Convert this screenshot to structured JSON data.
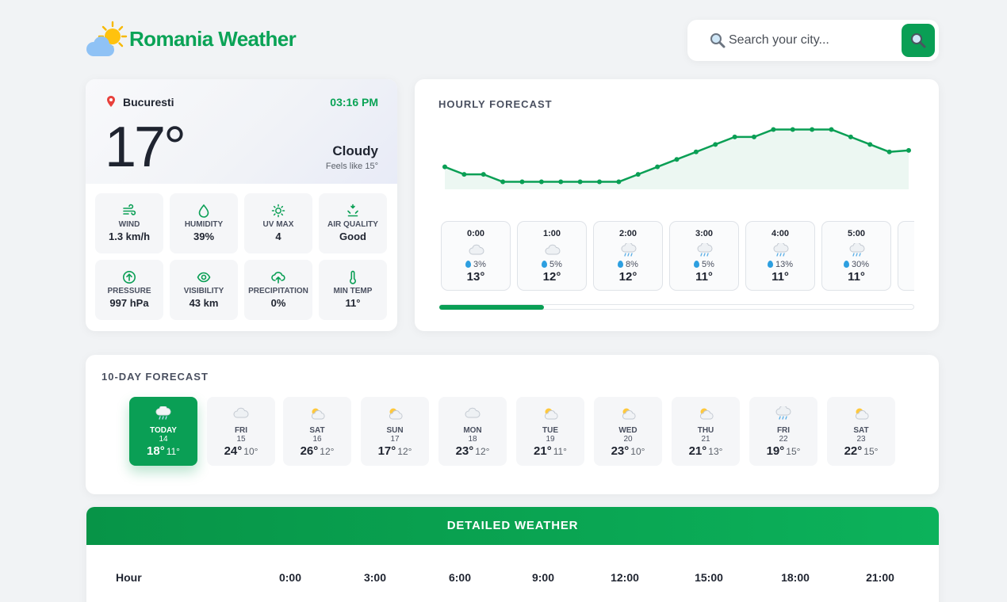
{
  "app": {
    "title": "Romania Weather"
  },
  "search": {
    "placeholder": "Search your city..."
  },
  "current": {
    "city": "Bucuresti",
    "time": "03:16 PM",
    "temperature": "17°",
    "condition": "Cloudy",
    "feels_like": "Feels like 15°",
    "stats": [
      {
        "icon": "wind-icon",
        "label": "WIND",
        "value": "1.3 km/h"
      },
      {
        "icon": "humidity-icon",
        "label": "HUMIDITY",
        "value": "39%"
      },
      {
        "icon": "sun-icon",
        "label": "UV MAX",
        "value": "4"
      },
      {
        "icon": "air-quality-icon",
        "label": "AIR QUALITY",
        "value": "Good"
      },
      {
        "icon": "pressure-icon",
        "label": "PRESSURE",
        "value": "997 hPa"
      },
      {
        "icon": "visibility-icon",
        "label": "VISIBILITY",
        "value": "43 km"
      },
      {
        "icon": "precipitation-icon",
        "label": "PRECIPITATION",
        "value": "0%"
      },
      {
        "icon": "thermometer-icon",
        "label": "MIN TEMP",
        "value": "11°"
      }
    ]
  },
  "hourly": {
    "title": "HOURLY FORECAST",
    "items": [
      {
        "time": "0:00",
        "icon": "cloud-icon",
        "precip": "3%",
        "temp": "13°"
      },
      {
        "time": "1:00",
        "icon": "cloud-icon",
        "precip": "5%",
        "temp": "12°"
      },
      {
        "time": "2:00",
        "icon": "rain-cloud-icon",
        "precip": "8%",
        "temp": "12°"
      },
      {
        "time": "3:00",
        "icon": "rain-cloud-icon",
        "precip": "5%",
        "temp": "11°"
      },
      {
        "time": "4:00",
        "icon": "rain-cloud-icon",
        "precip": "13%",
        "temp": "11°"
      },
      {
        "time": "5:00",
        "icon": "rain-cloud-icon",
        "precip": "30%",
        "temp": "11°"
      }
    ],
    "scroll_fraction": 0.22
  },
  "chart_data": {
    "type": "area",
    "series": [
      {
        "values": [
          13,
          12,
          12,
          11,
          11,
          11,
          11,
          11,
          11,
          11,
          12,
          13,
          14,
          15,
          16,
          17,
          17,
          18,
          18,
          18,
          18,
          17,
          16,
          15,
          15.2
        ]
      }
    ],
    "ylim": [
      10,
      19
    ],
    "grid": false,
    "color": "#0a9f55"
  },
  "daily": {
    "title": "10-DAY FORECAST",
    "days": [
      {
        "name": "TODAY",
        "date": "14",
        "icon": "rain-cloud-icon",
        "max": "18°",
        "min": "11°",
        "active": true
      },
      {
        "name": "FRI",
        "date": "15",
        "icon": "cloud-icon",
        "max": "24°",
        "min": "10°"
      },
      {
        "name": "SAT",
        "date": "16",
        "icon": "partly-cloudy-icon",
        "max": "26°",
        "min": "12°"
      },
      {
        "name": "SUN",
        "date": "17",
        "icon": "partly-cloudy-icon",
        "max": "17°",
        "min": "12°"
      },
      {
        "name": "MON",
        "date": "18",
        "icon": "cloud-icon",
        "max": "23°",
        "min": "12°"
      },
      {
        "name": "TUE",
        "date": "19",
        "icon": "partly-cloudy-icon",
        "max": "21°",
        "min": "11°"
      },
      {
        "name": "WED",
        "date": "20",
        "icon": "partly-cloudy-icon",
        "max": "23°",
        "min": "10°"
      },
      {
        "name": "THU",
        "date": "21",
        "icon": "partly-cloudy-icon",
        "max": "21°",
        "min": "13°"
      },
      {
        "name": "FRI",
        "date": "22",
        "icon": "rain-cloud-icon",
        "max": "19°",
        "min": "15°"
      },
      {
        "name": "SAT",
        "date": "23",
        "icon": "partly-cloudy-icon",
        "max": "22°",
        "min": "15°"
      }
    ]
  },
  "detailed": {
    "title": "DETAILED WEATHER",
    "row_label": "Hour",
    "columns": [
      "0:00",
      "3:00",
      "6:00",
      "9:00",
      "12:00",
      "15:00",
      "18:00",
      "21:00"
    ]
  },
  "colors": {
    "accent": "#0a9f55",
    "brand": "#0aa356"
  }
}
